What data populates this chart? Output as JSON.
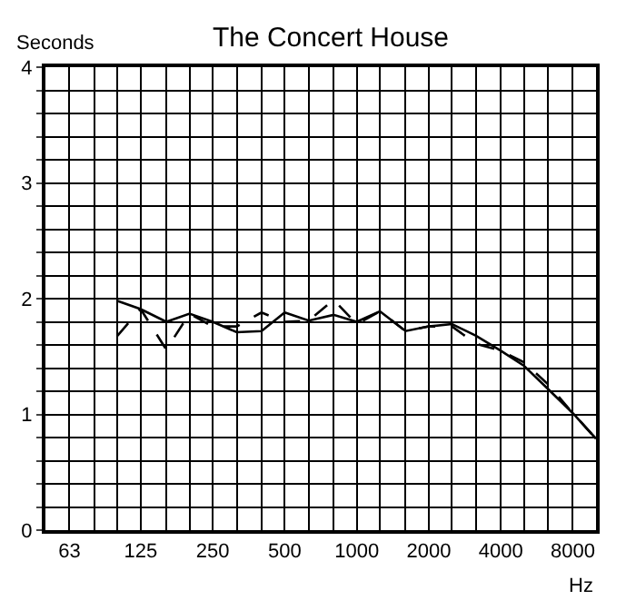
{
  "chart_data": {
    "type": "line",
    "title": "The Concert House",
    "xlabel": "Hz",
    "ylabel": "Seconds",
    "x": [
      100,
      125,
      160,
      200,
      250,
      315,
      400,
      500,
      630,
      800,
      1000,
      1250,
      1600,
      2000,
      2500,
      3150,
      4000,
      5000,
      6300,
      8000,
      10000
    ],
    "series": [
      {
        "color": "#000000",
        "line_style": "solid",
        "values": [
          1.98,
          1.91,
          1.8,
          1.87,
          1.8,
          1.71,
          1.72,
          1.88,
          1.81,
          1.86,
          1.8,
          1.89,
          1.72,
          1.76,
          1.78,
          1.68,
          1.55,
          1.42,
          1.22,
          1.01,
          0.79
        ]
      },
      {
        "color": "#000000",
        "line_style": "dashed",
        "values": [
          1.68,
          1.91,
          1.56,
          1.87,
          1.76,
          1.76,
          1.88,
          1.8,
          1.81,
          1.99,
          1.78,
          1.89,
          1.72,
          1.76,
          1.76,
          1.61,
          1.55,
          1.45,
          1.26,
          1.01,
          0.79
        ]
      }
    ],
    "log": "x",
    "xlim": [
      50,
      10000
    ],
    "xticks": [
      {
        "value": 50,
        "label": null
      },
      63,
      {
        "value": 80,
        "label": null
      },
      {
        "value": 100,
        "label": null
      },
      125,
      {
        "value": 160,
        "label": null
      },
      {
        "value": 200,
        "label": null
      },
      250,
      {
        "value": 315,
        "label": null
      },
      {
        "value": 400,
        "label": null
      },
      500,
      {
        "value": 630,
        "label": null
      },
      {
        "value": 800,
        "label": null
      },
      1000,
      {
        "value": 1250,
        "label": null
      },
      {
        "value": 1600,
        "label": null
      },
      2000,
      {
        "value": 2500,
        "label": null
      },
      {
        "value": 3150,
        "label": null
      },
      4000,
      {
        "value": 5000,
        "label": null
      },
      {
        "value": 6300,
        "label": null
      },
      8000,
      {
        "value": 10000,
        "label": null
      }
    ],
    "ylim": [
      0,
      4
    ],
    "yticks": [
      0,
      {
        "value": 0.2,
        "label": null
      },
      {
        "value": 0.4,
        "label": null
      },
      {
        "value": 0.6,
        "label": null
      },
      {
        "value": 0.8,
        "label": null
      },
      1,
      {
        "value": 1.2,
        "label": null
      },
      {
        "value": 1.4,
        "label": null
      },
      {
        "value": 1.6,
        "label": null
      },
      {
        "value": 1.8,
        "label": null
      },
      2,
      {
        "value": 2.2,
        "label": null
      },
      {
        "value": 2.4,
        "label": null
      },
      {
        "value": 2.6,
        "label": null
      },
      {
        "value": 2.8,
        "label": null
      },
      3,
      {
        "value": 3.2,
        "label": null
      },
      {
        "value": 3.4,
        "label": null
      },
      {
        "value": 3.6,
        "label": null
      },
      {
        "value": 3.8,
        "label": null
      },
      4
    ],
    "grid": true,
    "legend": false,
    "marker": "none"
  }
}
